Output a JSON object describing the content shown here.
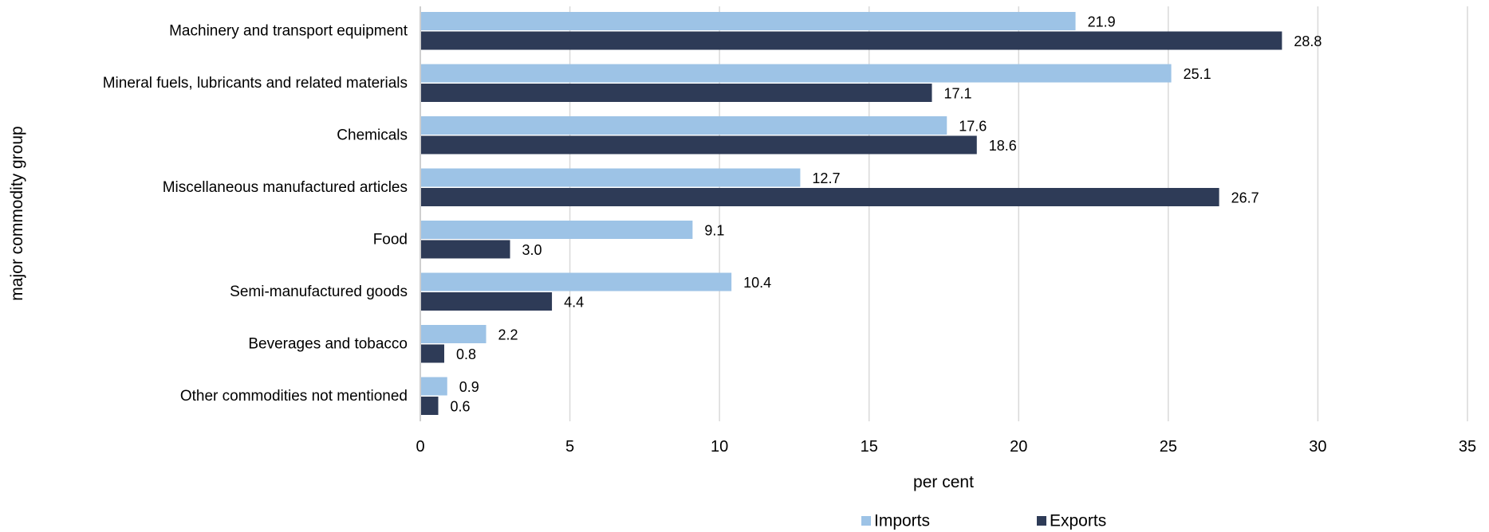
{
  "chart_data": {
    "type": "bar",
    "orientation": "horizontal",
    "categories": [
      "Machinery and transport equipment",
      "Mineral fuels, lubricants and related materials",
      "Chemicals",
      "Miscellaneous manufactured articles",
      "Food",
      "Semi-manufactured goods",
      "Beverages and tobacco",
      "Other commodities not mentioned"
    ],
    "series": [
      {
        "name": "Imports",
        "color": "#9dc3e6",
        "values": [
          21.9,
          25.1,
          17.6,
          12.7,
          9.1,
          10.4,
          2.2,
          0.9
        ]
      },
      {
        "name": "Exports",
        "color": "#2e3b57",
        "values": [
          28.8,
          17.1,
          18.6,
          26.7,
          3.0,
          4.4,
          0.8,
          0.6
        ]
      }
    ],
    "xlabel": "per cent",
    "ylabel": "major commodity group",
    "xlim": [
      0,
      35
    ],
    "xticks": [
      0,
      5,
      10,
      15,
      20,
      25,
      30,
      35
    ],
    "value_format_decimals": 1,
    "grid": "vertical",
    "gridline_color": "#d9d9d9",
    "legend_position": "bottom"
  }
}
